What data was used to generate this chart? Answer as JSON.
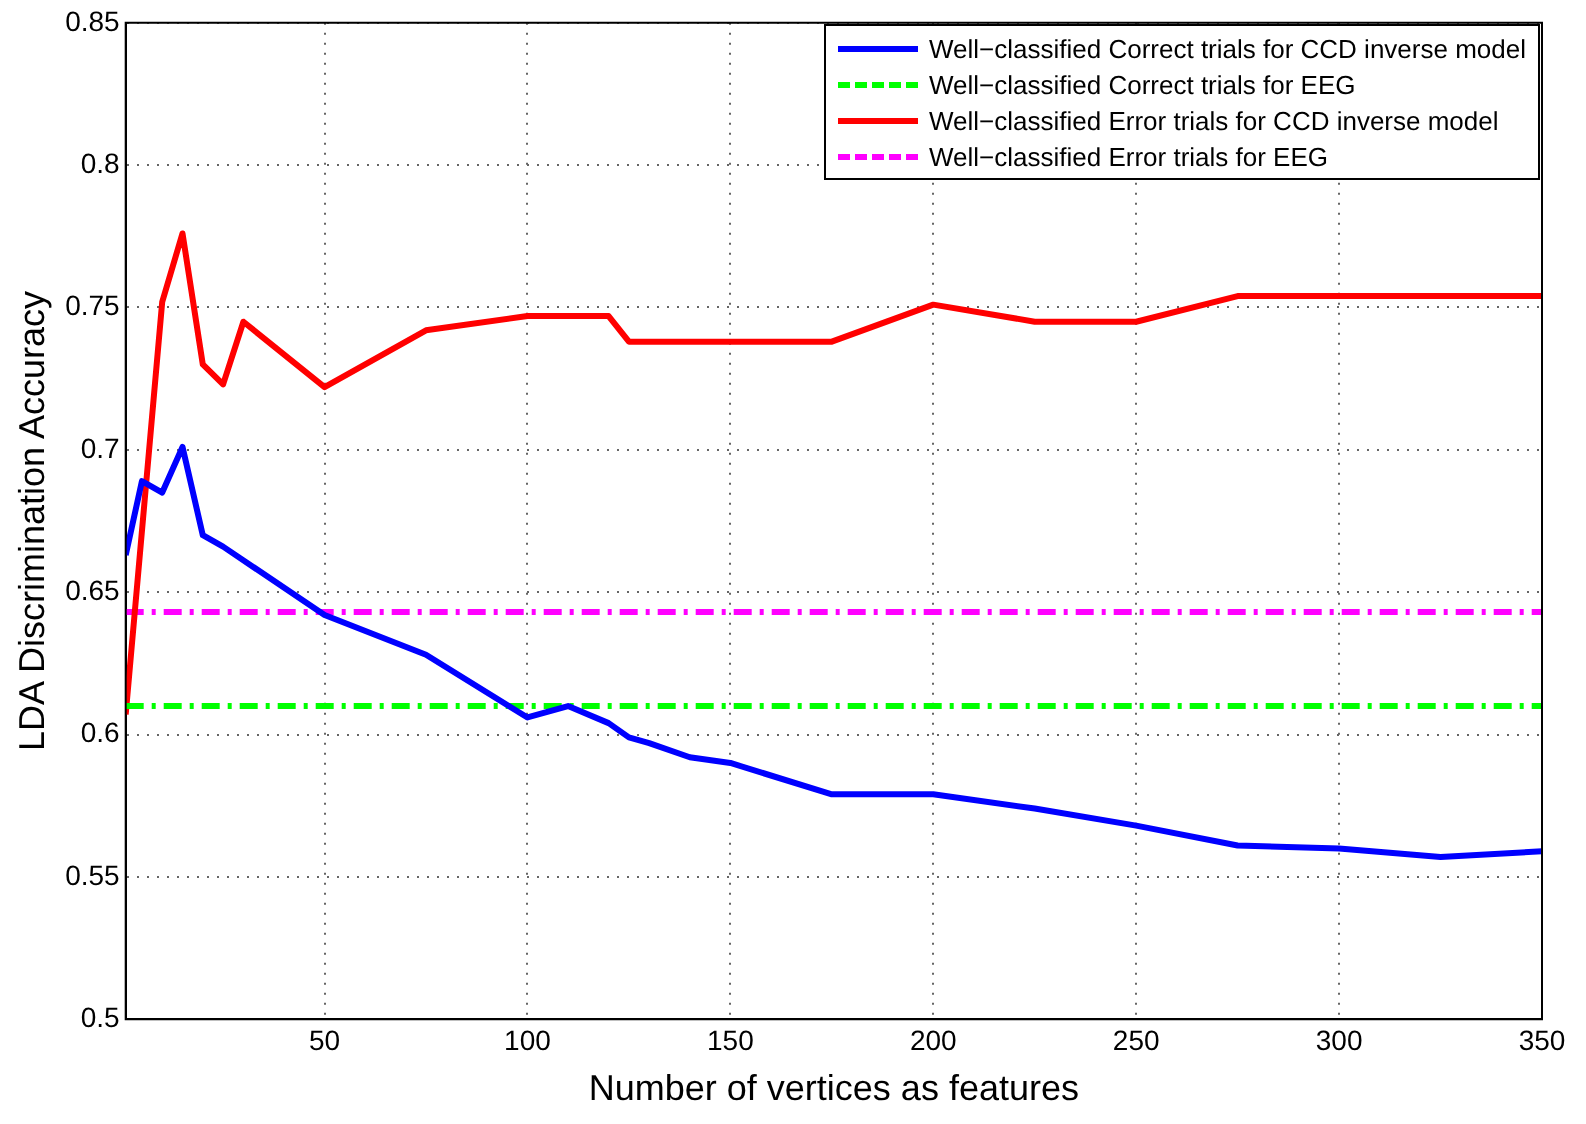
{
  "chart_data": {
    "type": "line",
    "xlabel": "Number of vertices as features",
    "ylabel": "LDA Discrimination Accuracy",
    "xlim": [
      1,
      350
    ],
    "xticks": [
      50,
      100,
      150,
      200,
      250,
      300,
      350
    ],
    "ylim": [
      0.5,
      0.85
    ],
    "yticks": [
      0.5,
      0.55,
      0.6,
      0.65,
      0.7,
      0.75,
      0.8,
      0.85
    ],
    "grid": true,
    "legend": "top right",
    "marker": "none",
    "series": [
      {
        "name": "Well−classified Correct trials for CCD inverse model",
        "color": "#0000ff",
        "line_style": "solid",
        "x": [
          1,
          5,
          10,
          15,
          20,
          25,
          50,
          75,
          100,
          110,
          120,
          125,
          130,
          140,
          150,
          175,
          200,
          225,
          250,
          275,
          300,
          325,
          350
        ],
        "values": [
          0.663,
          0.689,
          0.685,
          0.701,
          0.67,
          0.666,
          0.642,
          0.628,
          0.606,
          0.61,
          0.604,
          0.599,
          0.597,
          0.592,
          0.59,
          0.579,
          0.579,
          0.574,
          0.568,
          0.561,
          0.56,
          0.557,
          0.559
        ]
      },
      {
        "name": "Well−classified Correct trials for EEG",
        "color": "#00ff00",
        "line_style": "dashed",
        "x": [
          1,
          350
        ],
        "values": [
          0.61,
          0.61
        ]
      },
      {
        "name": "Well−classified Error trials for CCD inverse model",
        "color": "#ff0000",
        "line_style": "solid",
        "x": [
          1,
          10,
          15,
          20,
          25,
          30,
          50,
          75,
          100,
          110,
          120,
          125,
          150,
          175,
          200,
          225,
          250,
          275,
          300,
          325,
          350
        ],
        "values": [
          0.607,
          0.752,
          0.776,
          0.73,
          0.723,
          0.745,
          0.722,
          0.742,
          0.747,
          0.747,
          0.747,
          0.738,
          0.738,
          0.738,
          0.751,
          0.745,
          0.745,
          0.754,
          0.754,
          0.754,
          0.754
        ]
      },
      {
        "name": "Well−classified Error trials for EEG",
        "color": "#ff00ff",
        "line_style": "dashed",
        "x": [
          1,
          350
        ],
        "values": [
          0.643,
          0.643
        ]
      }
    ]
  }
}
